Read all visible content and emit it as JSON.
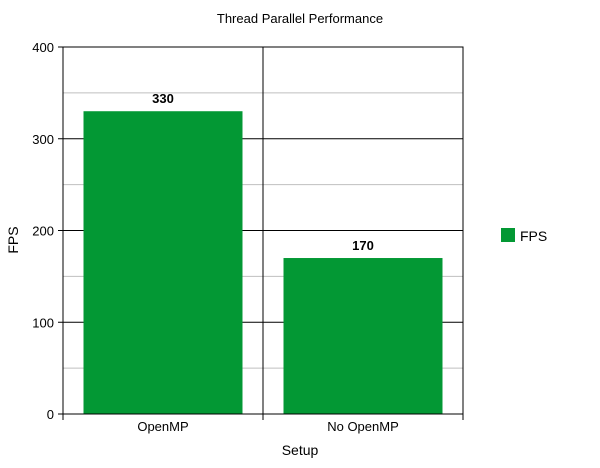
{
  "chart_data": {
    "type": "bar",
    "title": "Thread Parallel Performance",
    "xlabel": "Setup",
    "ylabel": "FPS",
    "categories": [
      "OpenMP",
      "No OpenMP"
    ],
    "series": [
      {
        "name": "FPS",
        "values": [
          330,
          170
        ],
        "color": "#039834"
      }
    ],
    "data_labels": [
      "330",
      "170"
    ],
    "ylim": [
      0,
      400
    ],
    "y_ticks": [
      0,
      100,
      200,
      300,
      400
    ],
    "y_tick_labels": [
      "0",
      "100",
      "200",
      "300",
      "400"
    ],
    "grid": true,
    "legend_position": "right"
  }
}
